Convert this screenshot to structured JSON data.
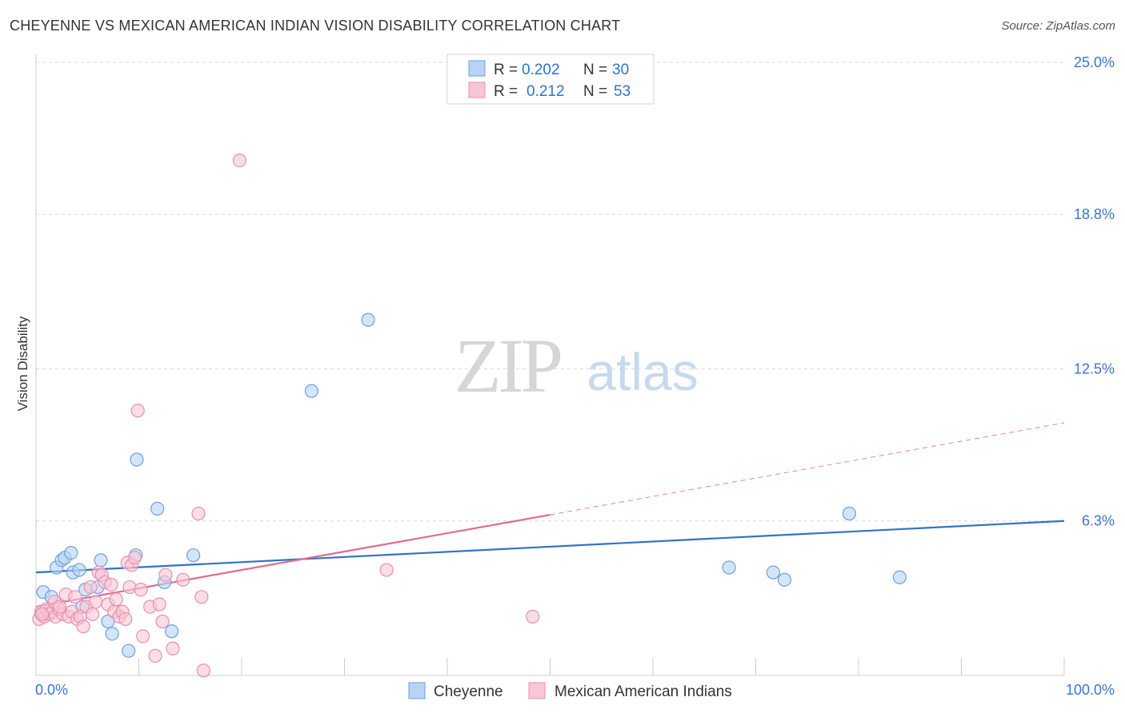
{
  "header": {
    "title": "CHEYENNE VS MEXICAN AMERICAN INDIAN VISION DISABILITY CORRELATION CHART",
    "source": "Source: ZipAtlas.com"
  },
  "watermark": {
    "zip": "ZIP",
    "atlas": "atlas"
  },
  "legend_top": {
    "rows": [
      {
        "r_label": "R = ",
        "r_value": "0.202",
        "n_label": "N = ",
        "n_value": "30"
      },
      {
        "r_label": "R = ",
        "r_value": "0.212",
        "n_label": "N = ",
        "n_value": "53"
      }
    ]
  },
  "legend_bottom": {
    "items": [
      "Cheyenne",
      "Mexican American Indians"
    ]
  },
  "colors": {
    "blue_fill": "#b8d3f5",
    "blue_stroke": "#6d9fdc",
    "blue_line": "#2f72cc",
    "pink_fill": "#f8c6d6",
    "pink_stroke": "#e88fae",
    "pink_line": "#e5698f",
    "tick_text": "#3b74c9",
    "grid": "#d9d9d9"
  },
  "chart_data": {
    "type": "scatter",
    "title": "CHEYENNE VS MEXICAN AMERICAN INDIAN VISION DISABILITY CORRELATION CHART",
    "ylabel": "Vision Disability",
    "xlabel": "",
    "xlim": [
      0,
      100
    ],
    "ylim": [
      0,
      25.0
    ],
    "x_tick_labels": [
      "0.0%",
      "100.0%"
    ],
    "y_ticks": [
      6.3,
      12.5,
      18.8,
      25.0
    ],
    "y_tick_labels": [
      "6.3%",
      "12.5%",
      "18.8%",
      "25.0%"
    ],
    "grid": true,
    "legend_placement": "top-center",
    "series": [
      {
        "name": "Cheyenne",
        "R": 0.202,
        "N": 30,
        "trend": {
          "x": [
            0,
            100
          ],
          "y": [
            4.2,
            6.3
          ],
          "solid_until": 100
        },
        "points": [
          [
            0.5,
            2.5
          ],
          [
            0.7,
            3.4
          ],
          [
            1.2,
            2.5
          ],
          [
            1.5,
            3.2
          ],
          [
            2.0,
            4.4
          ],
          [
            2.5,
            4.7
          ],
          [
            2.8,
            4.8
          ],
          [
            3.4,
            5.0
          ],
          [
            3.6,
            4.2
          ],
          [
            4.2,
            4.3
          ],
          [
            4.5,
            2.8
          ],
          [
            4.8,
            3.5
          ],
          [
            6.0,
            3.6
          ],
          [
            6.3,
            4.7
          ],
          [
            7.0,
            2.2
          ],
          [
            7.4,
            1.7
          ],
          [
            9.0,
            1.0
          ],
          [
            9.7,
            4.9
          ],
          [
            9.8,
            8.8
          ],
          [
            11.8,
            6.8
          ],
          [
            12.5,
            3.8
          ],
          [
            13.2,
            1.8
          ],
          [
            15.3,
            4.9
          ],
          [
            26.8,
            11.6
          ],
          [
            32.3,
            14.5
          ],
          [
            67.4,
            4.4
          ],
          [
            71.7,
            4.2
          ],
          [
            72.8,
            3.9
          ],
          [
            79.1,
            6.6
          ],
          [
            84.0,
            4.0
          ]
        ]
      },
      {
        "name": "Mexican American Indians",
        "R": 0.212,
        "N": 53,
        "trend": {
          "x": [
            0,
            100
          ],
          "y": [
            2.8,
            10.3
          ],
          "solid_until": 50
        },
        "points": [
          [
            0.3,
            2.3
          ],
          [
            0.5,
            2.6
          ],
          [
            0.8,
            2.4
          ],
          [
            1.0,
            2.7
          ],
          [
            1.3,
            2.5
          ],
          [
            1.6,
            2.6
          ],
          [
            1.9,
            2.4
          ],
          [
            2.2,
            2.7
          ],
          [
            2.6,
            2.5
          ],
          [
            2.9,
            3.3
          ],
          [
            3.2,
            2.4
          ],
          [
            3.5,
            2.6
          ],
          [
            3.8,
            3.2
          ],
          [
            4.0,
            2.3
          ],
          [
            4.3,
            2.4
          ],
          [
            4.6,
            2.0
          ],
          [
            4.9,
            2.8
          ],
          [
            5.3,
            3.6
          ],
          [
            5.5,
            2.5
          ],
          [
            5.8,
            3.0
          ],
          [
            6.1,
            4.2
          ],
          [
            6.4,
            4.1
          ],
          [
            6.7,
            3.8
          ],
          [
            7.0,
            2.9
          ],
          [
            7.3,
            3.7
          ],
          [
            7.6,
            2.6
          ],
          [
            7.8,
            3.1
          ],
          [
            8.1,
            2.4
          ],
          [
            8.4,
            2.6
          ],
          [
            8.7,
            2.3
          ],
          [
            8.9,
            4.6
          ],
          [
            9.1,
            3.6
          ],
          [
            9.3,
            4.5
          ],
          [
            9.6,
            4.8
          ],
          [
            9.9,
            10.8
          ],
          [
            10.2,
            3.5
          ],
          [
            10.4,
            1.6
          ],
          [
            11.1,
            2.8
          ],
          [
            11.6,
            0.8
          ],
          [
            12.0,
            2.9
          ],
          [
            12.3,
            2.2
          ],
          [
            12.6,
            4.1
          ],
          [
            13.3,
            1.1
          ],
          [
            14.3,
            3.9
          ],
          [
            15.8,
            6.6
          ],
          [
            16.1,
            3.2
          ],
          [
            16.3,
            0.2
          ],
          [
            19.8,
            21.0
          ],
          [
            34.1,
            4.3
          ],
          [
            48.3,
            2.4
          ],
          [
            0.6,
            2.5
          ],
          [
            1.8,
            3.0
          ],
          [
            2.3,
            2.8
          ]
        ]
      }
    ]
  }
}
